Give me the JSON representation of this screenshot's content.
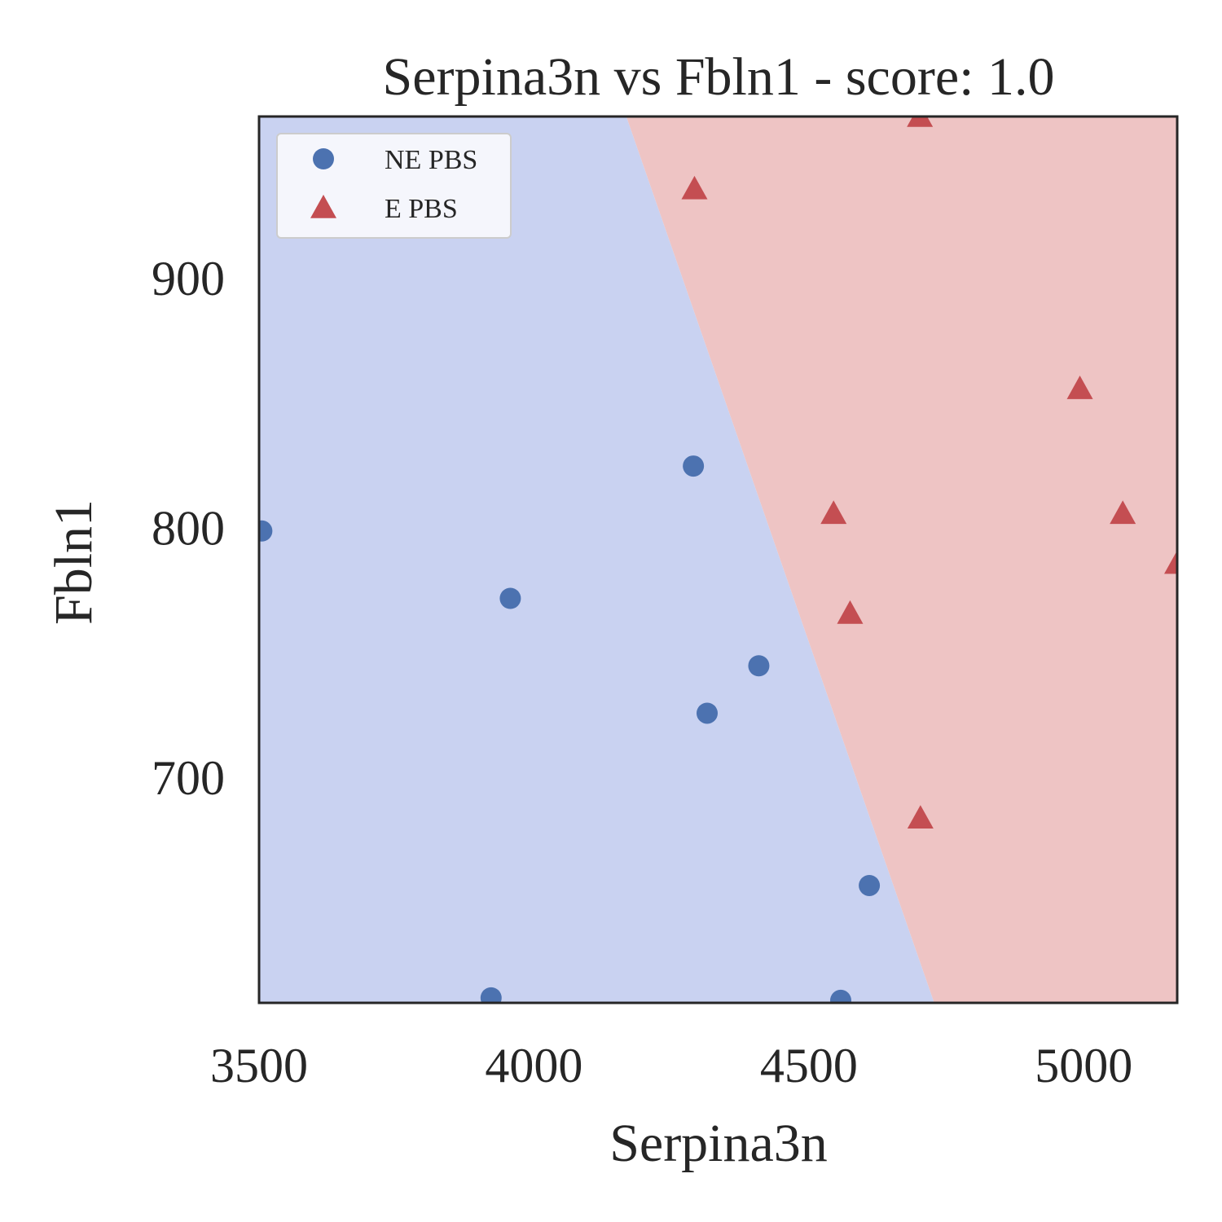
{
  "chart_data": {
    "type": "scatter",
    "title": "Serpina3n vs Fbln1 - score: 1.0",
    "xlabel": "Serpina3n",
    "ylabel": "Fbln1",
    "xlim": [
      3500,
      5170
    ],
    "ylim": [
      610,
      965
    ],
    "x_ticks": [
      3500,
      4000,
      4500,
      5000
    ],
    "y_ticks": [
      700,
      800,
      900
    ],
    "grid": false,
    "legend_position": "upper-left",
    "decision_boundary": {
      "line": [
        [
          4168,
          965
        ],
        [
          4728,
          610
        ]
      ],
      "left_region_color": "#c9d2f1",
      "right_region_color": "#eec4c4"
    },
    "series": [
      {
        "name": "NE PBS",
        "marker": "circle",
        "color": "#4c72b0",
        "points": [
          {
            "x": 3505,
            "y": 799
          },
          {
            "x": 3922,
            "y": 612
          },
          {
            "x": 3957,
            "y": 772
          },
          {
            "x": 4290,
            "y": 825
          },
          {
            "x": 4315,
            "y": 726
          },
          {
            "x": 4409,
            "y": 745
          },
          {
            "x": 4558,
            "y": 611
          },
          {
            "x": 4610,
            "y": 657
          }
        ]
      },
      {
        "name": "E PBS",
        "marker": "triangle",
        "color": "#c44e52",
        "points": [
          {
            "x": 4702,
            "y": 965
          },
          {
            "x": 4292,
            "y": 936
          },
          {
            "x": 4993,
            "y": 856
          },
          {
            "x": 4545,
            "y": 806
          },
          {
            "x": 5071,
            "y": 806
          },
          {
            "x": 5170,
            "y": 786
          },
          {
            "x": 4575,
            "y": 766
          },
          {
            "x": 4703,
            "y": 684
          }
        ]
      }
    ]
  }
}
